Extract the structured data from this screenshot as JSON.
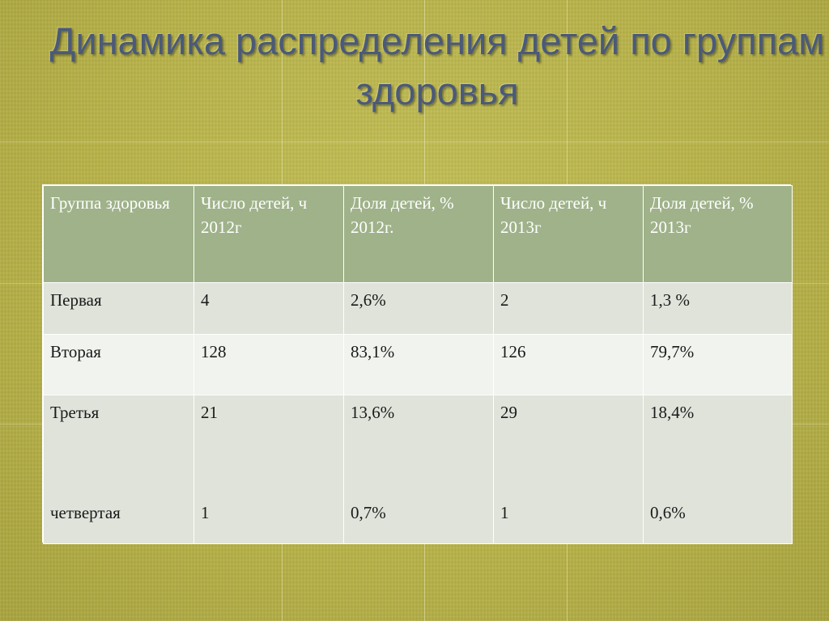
{
  "slide": {
    "title": "Динамика распределения детей по группам здоровья"
  },
  "table": {
    "headers": [
      "Группа здоровья",
      "Число детей, ч 2012г",
      "Доля детей, % 2012г.",
      "Число детей, ч 2013г",
      "Доля детей, % 2013г"
    ],
    "rows": [
      [
        "Первая",
        "4",
        "2,6%",
        "2",
        "1,3 %"
      ],
      [
        "Вторая",
        "128",
        "83,1%",
        "126",
        "79,7%"
      ],
      [
        "Третья",
        "21",
        "13,6%",
        "29",
        "18,4%"
      ],
      [
        "четвертая",
        "1",
        "0,7%",
        "1",
        "0,6%"
      ]
    ]
  }
}
